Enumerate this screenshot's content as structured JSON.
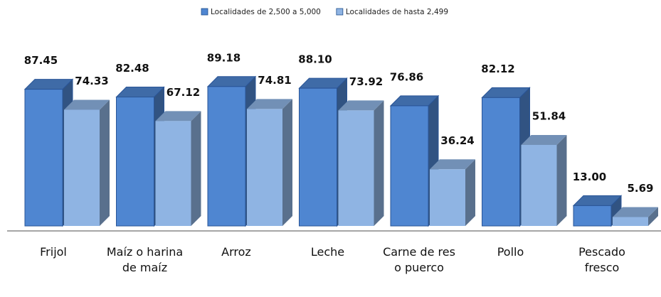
{
  "chart_data": {
    "type": "bar3d",
    "categories": [
      "Frijol",
      "Maíz o harina de maíz",
      "Arroz",
      "Leche",
      "Carne de res o puerco",
      "Pollo",
      "Pescado fresco"
    ],
    "series": [
      {
        "name": "Localidades de 2,500 a 5,000",
        "color": "#4f86d1",
        "values": [
          87.45,
          82.48,
          89.18,
          88.1,
          76.86,
          82.12,
          13.0
        ],
        "value_labels": [
          "87.45",
          "82.48",
          "89.18",
          "88.10",
          "76.86",
          "82.12",
          "13.00"
        ]
      },
      {
        "name": "Localidades de hasta 2,499",
        "color": "#8fb4e3",
        "values": [
          74.33,
          67.12,
          74.81,
          73.92,
          36.24,
          51.84,
          5.69
        ],
        "value_labels": [
          "74.33",
          "67.12",
          "74.81",
          "73.92",
          "36.24",
          "51.84",
          "5.69"
        ]
      }
    ],
    "legend": "top"
  }
}
